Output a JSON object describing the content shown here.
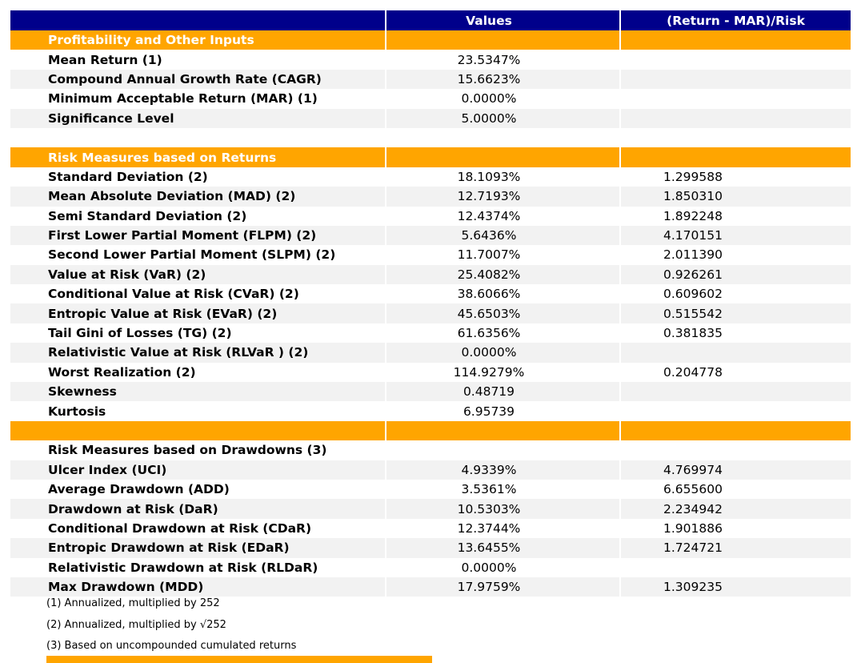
{
  "report": {
    "columns": {
      "label": "",
      "values": "Values",
      "ratio": "(Return - MAR)/Risk"
    },
    "rows": [
      {
        "type": "section",
        "label": "Profitability and Other Inputs",
        "value": "",
        "ratio": ""
      },
      {
        "type": "data",
        "label": "Mean Return (1)",
        "value": "23.5347%",
        "ratio": ""
      },
      {
        "type": "data-alt",
        "label": "Compound Annual Growth Rate (CAGR)",
        "value": "15.6623%",
        "ratio": ""
      },
      {
        "type": "data",
        "label": "Minimum Acceptable Return (MAR) (1)",
        "value": "0.0000%",
        "ratio": ""
      },
      {
        "type": "data-alt",
        "label": "Significance Level",
        "value": "5.0000%",
        "ratio": ""
      },
      {
        "type": "spacer",
        "label": "",
        "value": "",
        "ratio": ""
      },
      {
        "type": "section",
        "label": "Risk Measures based on Returns",
        "value": "",
        "ratio": ""
      },
      {
        "type": "data",
        "label": "Standard Deviation (2)",
        "value": "18.1093%",
        "ratio": "1.299588"
      },
      {
        "type": "data-alt",
        "label": "Mean Absolute Deviation (MAD) (2)",
        "value": "12.7193%",
        "ratio": "1.850310"
      },
      {
        "type": "data",
        "label": "Semi Standard Deviation (2)",
        "value": "12.4374%",
        "ratio": "1.892248"
      },
      {
        "type": "data-alt",
        "label": "First Lower Partial Moment (FLPM) (2)",
        "value": "5.6436%",
        "ratio": "4.170151"
      },
      {
        "type": "data",
        "label": "Second Lower Partial Moment (SLPM) (2)",
        "value": "11.7007%",
        "ratio": "2.011390"
      },
      {
        "type": "data-alt",
        "label": "Value at Risk (VaR) (2)",
        "value": "25.4082%",
        "ratio": "0.926261"
      },
      {
        "type": "data",
        "label": "Conditional Value at Risk (CVaR) (2)",
        "value": "38.6066%",
        "ratio": "0.609602"
      },
      {
        "type": "data-alt",
        "label": "Entropic Value at Risk (EVaR) (2)",
        "value": "45.6503%",
        "ratio": "0.515542"
      },
      {
        "type": "data",
        "label": "Tail Gini of Losses (TG) (2)",
        "value": "61.6356%",
        "ratio": "0.381835"
      },
      {
        "type": "data-alt",
        "label": "Relativistic Value at Risk (RLVaR ) (2)",
        "value": "0.0000%",
        "ratio": ""
      },
      {
        "type": "data",
        "label": "Worst Realization (2)",
        "value": "114.9279%",
        "ratio": "0.204778"
      },
      {
        "type": "data-alt",
        "label": "Skewness",
        "value": "0.48719",
        "ratio": ""
      },
      {
        "type": "data",
        "label": "Kurtosis",
        "value": "6.95739",
        "ratio": ""
      },
      {
        "type": "section-empty",
        "label": "",
        "value": "",
        "ratio": ""
      },
      {
        "type": "title",
        "label": "Risk Measures based on Drawdowns (3)",
        "value": "",
        "ratio": ""
      },
      {
        "type": "data-alt",
        "label": "Ulcer Index (UCI)",
        "value": "4.9339%",
        "ratio": "4.769974"
      },
      {
        "type": "data",
        "label": "Average Drawdown (ADD)",
        "value": "3.5361%",
        "ratio": "6.655600"
      },
      {
        "type": "data-alt",
        "label": "Drawdown at Risk (DaR)",
        "value": "10.5303%",
        "ratio": "2.234942"
      },
      {
        "type": "data",
        "label": "Conditional Drawdown at Risk (CDaR)",
        "value": "12.3744%",
        "ratio": "1.901886"
      },
      {
        "type": "data-alt",
        "label": "Entropic Drawdown at Risk (EDaR)",
        "value": "13.6455%",
        "ratio": "1.724721"
      },
      {
        "type": "data",
        "label": "Relativistic Drawdown at Risk (RLDaR)",
        "value": "0.0000%",
        "ratio": ""
      },
      {
        "type": "data-alt",
        "label": "Max Drawdown (MDD)",
        "value": "17.9759%",
        "ratio": "1.309235"
      }
    ],
    "footnotes": [
      "(1) Annualized, multiplied by 252",
      "(2) Annualized, multiplied by √252",
      "(3) Based on uncompounded cumulated returns"
    ]
  },
  "colors": {
    "header_bg": "#00008B",
    "section_bg": "#FFA500",
    "row_alt_bg": "#F2F2F2",
    "header_text": "#FFFFFF",
    "body_text": "#000000"
  }
}
